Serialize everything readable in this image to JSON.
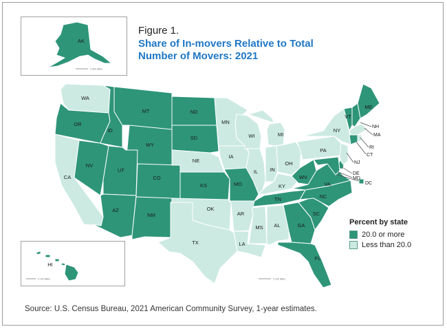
{
  "figure": {
    "label": "Figure 1.",
    "title": "Share of In-movers Relative to Total Number of Movers: 2021",
    "source": "Source: U.S. Census Bureau, 2021 American Community Survey, 1-year estimates."
  },
  "legend": {
    "title": "Percent by state",
    "items": [
      {
        "label": "20.0 or more",
        "category": "high"
      },
      {
        "label": "Less than 20.0",
        "category": "low"
      }
    ]
  },
  "colors": {
    "high": "#2e9579",
    "low": "#cceae2",
    "border": "#ffffff",
    "title": "#1f77c4"
  },
  "scale_labels": {
    "alaska": "0  500 Miles",
    "hawaii": "0  100 Miles",
    "main": "0  200 Miles"
  },
  "states": [
    {
      "abbr": "AK",
      "category": "high"
    },
    {
      "abbr": "HI",
      "category": "high"
    },
    {
      "abbr": "WA",
      "category": "low"
    },
    {
      "abbr": "OR",
      "category": "high"
    },
    {
      "abbr": "CA",
      "category": "low"
    },
    {
      "abbr": "NV",
      "category": "high"
    },
    {
      "abbr": "ID",
      "category": "high"
    },
    {
      "abbr": "MT",
      "category": "high"
    },
    {
      "abbr": "WY",
      "category": "high"
    },
    {
      "abbr": "UT",
      "category": "high"
    },
    {
      "abbr": "CO",
      "category": "high"
    },
    {
      "abbr": "AZ",
      "category": "high"
    },
    {
      "abbr": "NM",
      "category": "high"
    },
    {
      "abbr": "ND",
      "category": "high"
    },
    {
      "abbr": "SD",
      "category": "high"
    },
    {
      "abbr": "NE",
      "category": "low"
    },
    {
      "abbr": "KS",
      "category": "high"
    },
    {
      "abbr": "OK",
      "category": "low"
    },
    {
      "abbr": "TX",
      "category": "low"
    },
    {
      "abbr": "MN",
      "category": "low"
    },
    {
      "abbr": "IA",
      "category": "low"
    },
    {
      "abbr": "MO",
      "category": "high"
    },
    {
      "abbr": "AR",
      "category": "low"
    },
    {
      "abbr": "LA",
      "category": "low"
    },
    {
      "abbr": "WI",
      "category": "low"
    },
    {
      "abbr": "IL",
      "category": "low"
    },
    {
      "abbr": "MI",
      "category": "low"
    },
    {
      "abbr": "IN",
      "category": "low"
    },
    {
      "abbr": "OH",
      "category": "low"
    },
    {
      "abbr": "KY",
      "category": "low"
    },
    {
      "abbr": "TN",
      "category": "high"
    },
    {
      "abbr": "MS",
      "category": "low"
    },
    {
      "abbr": "AL",
      "category": "low"
    },
    {
      "abbr": "GA",
      "category": "high"
    },
    {
      "abbr": "FL",
      "category": "high"
    },
    {
      "abbr": "SC",
      "category": "high"
    },
    {
      "abbr": "NC",
      "category": "high"
    },
    {
      "abbr": "VA",
      "category": "high"
    },
    {
      "abbr": "WV",
      "category": "high"
    },
    {
      "abbr": "PA",
      "category": "low"
    },
    {
      "abbr": "NY",
      "category": "low"
    },
    {
      "abbr": "VT",
      "category": "high"
    },
    {
      "abbr": "NH",
      "category": "high"
    },
    {
      "abbr": "ME",
      "category": "high"
    },
    {
      "abbr": "MA",
      "category": "low"
    },
    {
      "abbr": "RI",
      "category": "low"
    },
    {
      "abbr": "CT",
      "category": "high"
    },
    {
      "abbr": "NJ",
      "category": "low"
    },
    {
      "abbr": "DE",
      "category": "high"
    },
    {
      "abbr": "MD",
      "category": "high"
    },
    {
      "abbr": "DC",
      "category": "high"
    }
  ]
}
